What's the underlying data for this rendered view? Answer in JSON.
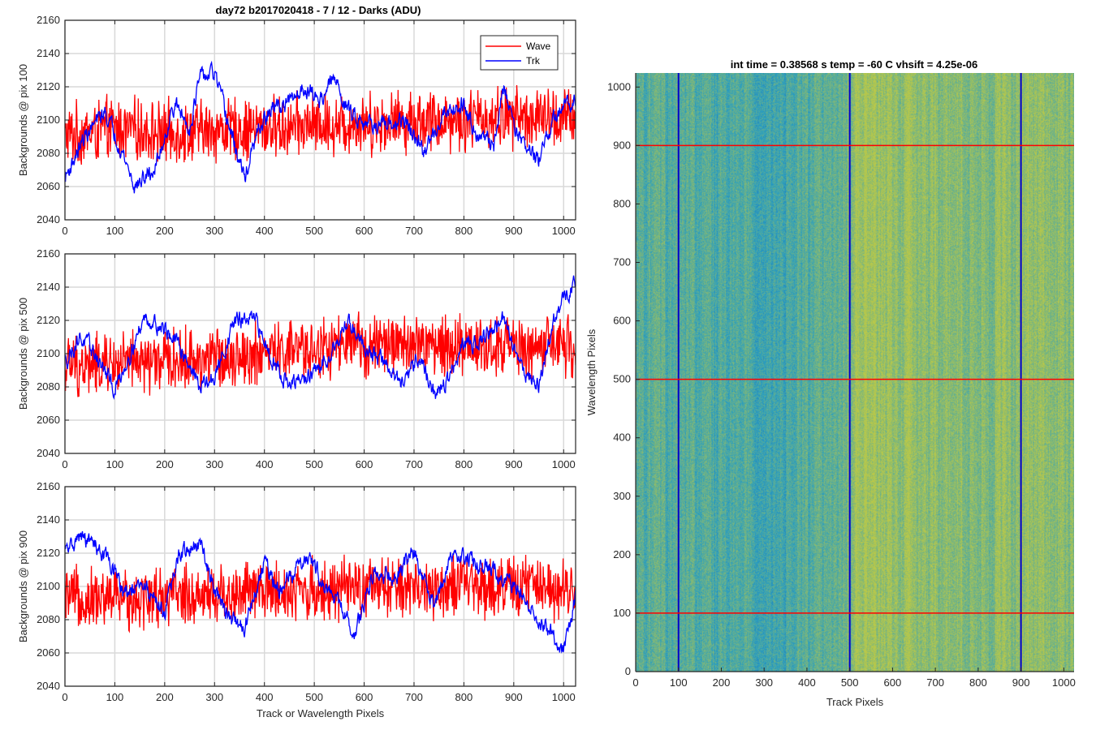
{
  "figure": {
    "left_title": "day72 b2017020418 - 7 / 12 - Darks (ADU)",
    "right_title": "int time = 0.38568 s    temp = -60 C    vhsift = 4.25e-06",
    "legend": [
      "Wave",
      "Trk"
    ],
    "colors": {
      "wave": "#ff0000",
      "trk": "#0000ff",
      "image_base": "#2a9ec0",
      "image_warm": "#b8c84a"
    }
  },
  "chart_data": [
    {
      "type": "line",
      "title": "day72 b2017020418 - 7 / 12 - Darks (ADU)",
      "xlabel": "",
      "ylabel": "Backgrounds @ pix 100",
      "xlim": [
        0,
        1024
      ],
      "ylim": [
        2040,
        2160
      ],
      "xticks": [
        "0",
        "100",
        "200",
        "300",
        "400",
        "500",
        "600",
        "700",
        "800",
        "900",
        "1000"
      ],
      "yticks": [
        "2040",
        "2060",
        "2080",
        "2100",
        "2120",
        "2140",
        "2160"
      ],
      "legend_position": "top-right",
      "series": [
        {
          "name": "Wave",
          "color": "#ff0000",
          "mean": 2095,
          "noise_amplitude": 15,
          "profile_x": [
            0,
            100,
            200,
            300,
            400,
            500,
            600,
            700,
            800,
            900,
            1024
          ],
          "profile_y": [
            2090,
            2095,
            2092,
            2094,
            2095,
            2097,
            2098,
            2100,
            2100,
            2102,
            2100
          ]
        },
        {
          "name": "Trk",
          "color": "#0000ff",
          "noise_amplitude": 4,
          "profile_x": [
            0,
            40,
            80,
            110,
            140,
            180,
            220,
            250,
            270,
            300,
            330,
            360,
            390,
            420,
            450,
            480,
            510,
            540,
            570,
            600,
            640,
            680,
            720,
            760,
            800,
            830,
            860,
            880,
            910,
            950,
            980,
            1024
          ],
          "profile_y": [
            2065,
            2090,
            2105,
            2085,
            2060,
            2070,
            2110,
            2095,
            2125,
            2128,
            2095,
            2065,
            2095,
            2108,
            2110,
            2120,
            2112,
            2125,
            2105,
            2100,
            2095,
            2100,
            2080,
            2105,
            2110,
            2090,
            2085,
            2120,
            2090,
            2075,
            2100,
            2115
          ]
        }
      ]
    },
    {
      "type": "line",
      "title": "",
      "xlabel": "",
      "ylabel": "Backgrounds @ pix 500",
      "xlim": [
        0,
        1024
      ],
      "ylim": [
        2040,
        2160
      ],
      "xticks": [
        "0",
        "100",
        "200",
        "300",
        "400",
        "500",
        "600",
        "700",
        "800",
        "900",
        "1000"
      ],
      "yticks": [
        "2040",
        "2060",
        "2080",
        "2100",
        "2120",
        "2140",
        "2160"
      ],
      "series": [
        {
          "name": "Wave",
          "color": "#ff0000",
          "noise_amplitude": 15,
          "profile_x": [
            0,
            200,
            400,
            600,
            800,
            1024
          ],
          "profile_y": [
            2092,
            2095,
            2100,
            2105,
            2105,
            2103
          ]
        },
        {
          "name": "Trk",
          "color": "#0000ff",
          "noise_amplitude": 4,
          "profile_x": [
            0,
            30,
            60,
            100,
            130,
            160,
            200,
            240,
            270,
            300,
            340,
            380,
            420,
            450,
            480,
            510,
            540,
            570,
            600,
            640,
            680,
            710,
            740,
            770,
            800,
            840,
            880,
            920,
            950,
            980,
            1024
          ],
          "profile_y": [
            2095,
            2110,
            2100,
            2078,
            2100,
            2122,
            2115,
            2100,
            2080,
            2085,
            2120,
            2120,
            2095,
            2080,
            2085,
            2090,
            2105,
            2120,
            2105,
            2095,
            2080,
            2100,
            2075,
            2085,
            2105,
            2110,
            2120,
            2090,
            2080,
            2120,
            2145
          ]
        }
      ]
    },
    {
      "type": "line",
      "title": "",
      "xlabel": "Track or Wavelength Pixels",
      "ylabel": "Backgrounds @ pix 900",
      "xlim": [
        0,
        1024
      ],
      "ylim": [
        2040,
        2160
      ],
      "xticks": [
        "0",
        "100",
        "200",
        "300",
        "400",
        "500",
        "600",
        "700",
        "800",
        "900",
        "1000"
      ],
      "yticks": [
        "2040",
        "2060",
        "2080",
        "2100",
        "2120",
        "2140",
        "2160"
      ],
      "series": [
        {
          "name": "Wave",
          "color": "#ff0000",
          "noise_amplitude": 15,
          "profile_x": [
            0,
            200,
            400,
            600,
            800,
            1024
          ],
          "profile_y": [
            2092,
            2094,
            2097,
            2098,
            2100,
            2100
          ]
        },
        {
          "name": "Trk",
          "color": "#0000ff",
          "noise_amplitude": 4,
          "profile_x": [
            0,
            30,
            60,
            90,
            120,
            160,
            200,
            230,
            270,
            300,
            330,
            360,
            400,
            430,
            460,
            490,
            520,
            550,
            580,
            620,
            660,
            700,
            740,
            780,
            820,
            860,
            900,
            940,
            980,
            1000,
            1024
          ],
          "profile_y": [
            2120,
            2130,
            2125,
            2115,
            2095,
            2100,
            2085,
            2120,
            2125,
            2100,
            2080,
            2075,
            2115,
            2095,
            2110,
            2120,
            2100,
            2090,
            2070,
            2110,
            2105,
            2120,
            2090,
            2120,
            2115,
            2110,
            2100,
            2085,
            2070,
            2060,
            2095
          ]
        }
      ]
    },
    {
      "type": "heatmap",
      "title": "int time = 0.38568 s    temp = -60 C    vhsift = 4.25e-06",
      "xlabel": "Track Pixels",
      "ylabel": "Wavelength Pixels",
      "xlim": [
        0,
        1024
      ],
      "ylim": [
        0,
        1024
      ],
      "xticks": [
        "0",
        "100",
        "200",
        "300",
        "400",
        "500",
        "600",
        "700",
        "800",
        "900",
        "1000"
      ],
      "yticks": [
        "0",
        "100",
        "200",
        "300",
        "400",
        "500",
        "600",
        "700",
        "800",
        "900",
        "1000"
      ],
      "grid": false,
      "vertical_lines": {
        "color": "#0000cc",
        "x": [
          100,
          500,
          900
        ]
      },
      "horizontal_lines": {
        "color": "#ff0000",
        "y": [
          100,
          500,
          900
        ]
      },
      "column_warmth_profile_x": [
        0,
        100,
        200,
        300,
        400,
        500,
        520,
        600,
        700,
        800,
        900,
        1024
      ],
      "column_warmth_profile_v": [
        0.35,
        0.3,
        0.25,
        0.15,
        0.25,
        0.5,
        0.85,
        0.75,
        0.7,
        0.6,
        0.75,
        0.65
      ]
    }
  ]
}
